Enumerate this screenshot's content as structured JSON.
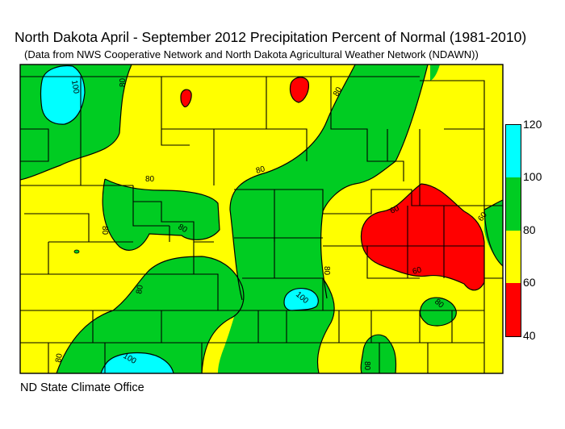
{
  "title": "North Dakota April - September 2012 Precipitation Percent of Normal (1981-2010)",
  "subtitle": "(Data from NWS Cooperative Network and North Dakota Agricultural Weather Network (NDAWN))",
  "credit": "ND State Climate Office",
  "colors": {
    "band_40_60": "#ff0000",
    "band_60_80": "#ffff00",
    "band_80_100": "#00cc22",
    "band_100_120": "#00ffff",
    "county_lines": "#000000"
  },
  "legend": {
    "ticks": [
      "120",
      "100",
      "80",
      "60",
      "40"
    ],
    "bands": [
      {
        "range": "100-120",
        "color": "#00ffff"
      },
      {
        "range": "80-100",
        "color": "#00cc22"
      },
      {
        "range": "60-80",
        "color": "#ffff00"
      },
      {
        "range": "40-60",
        "color": "#ff0000"
      }
    ]
  },
  "contour_labels": [
    "100",
    "80",
    "80",
    "80",
    "80",
    "80",
    "80",
    "60",
    "60",
    "60",
    "80",
    "100",
    "80",
    "80",
    "100",
    "80",
    "80"
  ]
}
